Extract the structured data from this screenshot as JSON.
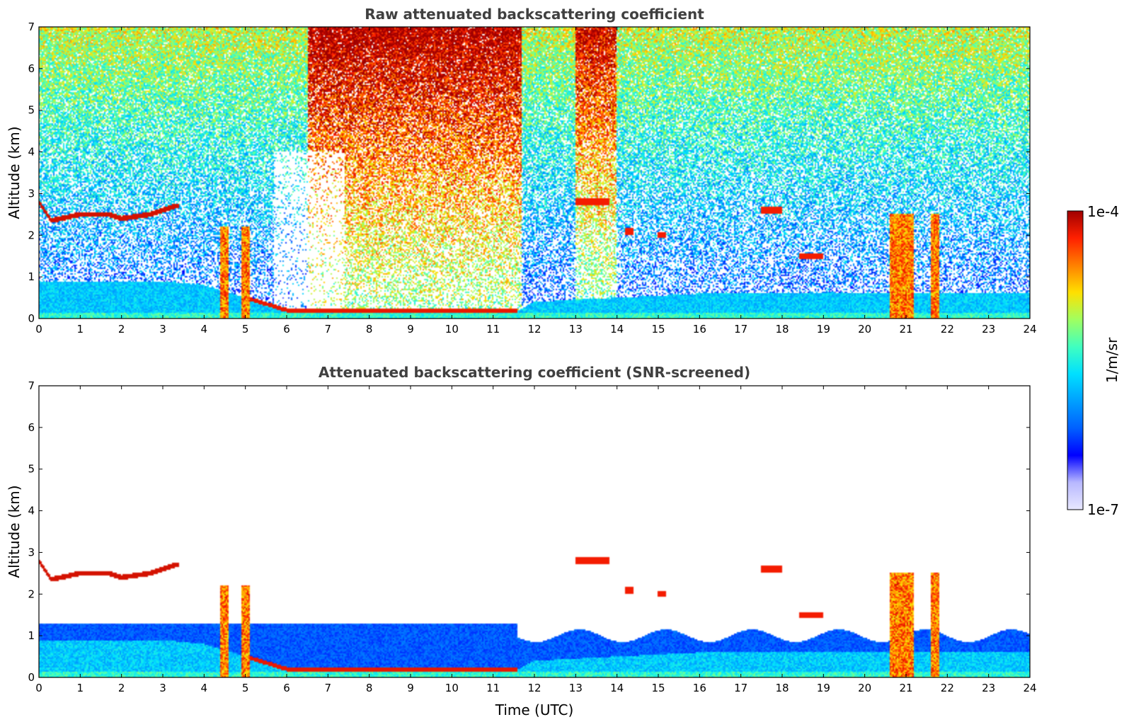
{
  "chart_data": [
    {
      "type": "heatmap",
      "title": "Raw attenuated backscattering coefficient",
      "xlabel": "",
      "ylabel": "Altitude (km)",
      "xlim": [
        0,
        24
      ],
      "ylim": [
        0,
        7
      ],
      "xticks": [
        "0",
        "1",
        "2",
        "3",
        "4",
        "5",
        "6",
        "7",
        "8",
        "9",
        "10",
        "11",
        "12",
        "13",
        "14",
        "15",
        "16",
        "17",
        "18",
        "19",
        "20",
        "21",
        "22",
        "23",
        "24"
      ],
      "yticks": [
        "0",
        "1",
        "2",
        "3",
        "4",
        "5",
        "6",
        "7"
      ],
      "variant": "raw",
      "features": {
        "cloud_layer_km": [
          [
            0.0,
            2.8
          ],
          [
            0.3,
            2.35
          ],
          [
            1.0,
            2.5
          ],
          [
            1.7,
            2.5
          ],
          [
            2.0,
            2.4
          ],
          [
            2.7,
            2.5
          ],
          [
            3.3,
            2.7
          ]
        ],
        "aerosol_top_km": [
          [
            0,
            0.9
          ],
          [
            3.0,
            0.9
          ],
          [
            4.0,
            0.8
          ],
          [
            5.0,
            0.5
          ],
          [
            6.0,
            0.2
          ],
          [
            8.0,
            0.2
          ],
          [
            11.6,
            0.2
          ],
          [
            12,
            0.4
          ],
          [
            16,
            0.6
          ],
          [
            20,
            0.6
          ],
          [
            24,
            0.6
          ]
        ],
        "precip_columns_h": [
          [
            4.4,
            4.6
          ],
          [
            4.9,
            5.1
          ],
          [
            20.6,
            21.2
          ],
          [
            21.6,
            21.8
          ]
        ],
        "upper_cloud_segments": [
          [
            13.0,
            13.8,
            2.8
          ],
          [
            17.5,
            18.0,
            2.6
          ],
          [
            18.4,
            19.0,
            1.5
          ],
          [
            14.2,
            14.4,
            2.1
          ],
          [
            15.0,
            15.2,
            2.0
          ]
        ]
      }
    },
    {
      "type": "heatmap",
      "title": "Attenuated backscattering coefficient (SNR-screened)",
      "xlabel": "Time (UTC)",
      "ylabel": "Altitude (km)",
      "xlim": [
        0,
        24
      ],
      "ylim": [
        0,
        7
      ],
      "xticks": [
        "0",
        "1",
        "2",
        "3",
        "4",
        "5",
        "6",
        "7",
        "8",
        "9",
        "10",
        "11",
        "12",
        "13",
        "14",
        "15",
        "16",
        "17",
        "18",
        "19",
        "20",
        "21",
        "22",
        "23",
        "24"
      ],
      "yticks": [
        "0",
        "1",
        "2",
        "3",
        "4",
        "5",
        "6",
        "7"
      ],
      "variant": "screened"
    }
  ],
  "colorbar": {
    "label": "1/m/sr",
    "max_label": "1e-4",
    "min_label": "1e-7",
    "colors": [
      "#e8e8ff",
      "#b8b8ff",
      "#0000ff",
      "#0060ff",
      "#00a0ff",
      "#00e0ff",
      "#40ffc0",
      "#a0ff60",
      "#ffe000",
      "#ff8000",
      "#ff2000",
      "#a00000"
    ]
  }
}
